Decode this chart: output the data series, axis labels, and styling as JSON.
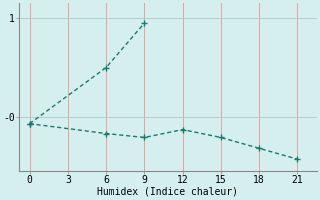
{
  "xlabel": "Humidex (Indice chaleur)",
  "bg_color": "#d5eeee",
  "line_color": "#1a7a6e",
  "grid_color_v": "#e8a0a0",
  "grid_color_h": "#b0cccc",
  "xticks": [
    0,
    3,
    6,
    9,
    12,
    15,
    18,
    21
  ],
  "ytick_vals": [
    1.0,
    0.0
  ],
  "ytick_labels": [
    "1",
    "-0"
  ],
  "ylim": [
    -0.55,
    1.15
  ],
  "xlim": [
    -0.8,
    22.5
  ],
  "line1_x": [
    0,
    6,
    9
  ],
  "line1_y": [
    -0.07,
    0.5,
    0.95
  ],
  "line2_x": [
    0,
    6,
    9,
    12,
    15,
    18,
    21
  ],
  "line2_y": [
    -0.07,
    -0.17,
    -0.21,
    -0.13,
    -0.21,
    -0.32,
    -0.43
  ]
}
